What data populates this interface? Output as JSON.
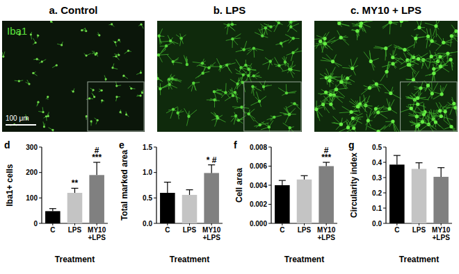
{
  "figure": {
    "images": [
      {
        "label": "a. Control"
      },
      {
        "label": "b. LPS"
      },
      {
        "label": "c. MY10 + LPS"
      }
    ],
    "stain": "Iba1",
    "scale_bar": "100 μm"
  },
  "chart_data": [
    {
      "type": "bar",
      "panel": "d",
      "categories": [
        "C",
        "LPS",
        "MY10 +LPS"
      ],
      "values": [
        48,
        120,
        190
      ],
      "errors": [
        10,
        18,
        50
      ],
      "colors": [
        "#000000",
        "#c4c4c4",
        "#808080"
      ],
      "ylabel": "Iba1+ cells",
      "xlabel": "Treatment",
      "ylim": [
        0,
        300
      ],
      "yticks": [
        0,
        100,
        200,
        300
      ],
      "annotations": [
        null,
        [
          "**"
        ],
        [
          "#",
          "***"
        ]
      ]
    },
    {
      "type": "bar",
      "panel": "e",
      "categories": [
        "C",
        "LPS",
        "MY10 +LPS"
      ],
      "values": [
        0.6,
        0.56,
        0.99
      ],
      "errors": [
        0.21,
        0.1,
        0.16
      ],
      "colors": [
        "#000000",
        "#c4c4c4",
        "#808080"
      ],
      "ylabel": "Total marked area",
      "xlabel": "Treatment",
      "ylim": [
        0,
        1.5
      ],
      "yticks": [
        {
          "value": 0,
          "label": "0.0"
        },
        0.5,
        {
          "value": 1,
          "label": "1.0"
        },
        1.5
      ],
      "annotations": [
        null,
        null,
        [
          "* #"
        ]
      ]
    },
    {
      "type": "bar",
      "panel": "f",
      "categories": [
        "C",
        "LPS",
        "MY10 +LPS"
      ],
      "values": [
        0.004,
        0.0046,
        0.006
      ],
      "errors": [
        0.0005,
        0.0004,
        0.0004
      ],
      "colors": [
        "#000000",
        "#c4c4c4",
        "#808080"
      ],
      "ylabel": "Cell area",
      "xlabel": "Treatment",
      "ylim": [
        0,
        0.008
      ],
      "yticks": [
        {
          "value": 0,
          "label": "0.000"
        },
        {
          "value": 0.002,
          "label": "0.002"
        },
        {
          "value": 0.004,
          "label": "0.004"
        },
        {
          "value": 0.006,
          "label": "0.006"
        },
        {
          "value": 0.008,
          "label": "0.008"
        }
      ],
      "annotations": [
        null,
        null,
        [
          "#",
          "***"
        ]
      ]
    },
    {
      "type": "bar",
      "panel": "g",
      "categories": [
        "C",
        "LPS",
        "MY10 +LPS"
      ],
      "values": [
        0.385,
        0.357,
        0.305
      ],
      "errors": [
        0.06,
        0.04,
        0.06
      ],
      "colors": [
        "#000000",
        "#c4c4c4",
        "#808080"
      ],
      "ylabel": "Circularity index",
      "xlabel": "Treatment",
      "ylim": [
        0,
        0.5
      ],
      "yticks": [
        {
          "value": 0,
          "label": "0.0"
        },
        0.1,
        0.2,
        0.3,
        0.4,
        0.5
      ],
      "annotations": null
    }
  ]
}
